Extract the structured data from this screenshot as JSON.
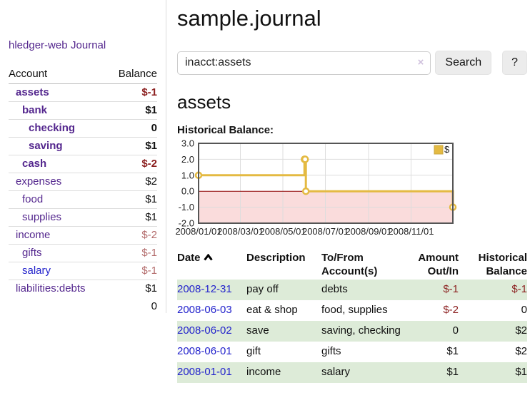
{
  "app": {
    "title": "hledger-web",
    "nav_journal": "Journal"
  },
  "colors": {
    "purple": "#54278e",
    "blue_link": "#2323cc",
    "negative": "#8b1f1f",
    "negative_muted": "#b36b6b",
    "row_green": "#ddebd8",
    "chart_line": "#e4ba42",
    "chart_line_border": "#c9a53d",
    "chart_negative_fill": "#fadcdc",
    "chart_zero_line": "#8b0000",
    "chart_border": "#555555",
    "grid": "#dddddd",
    "button_bg": "#ececec"
  },
  "sidebar": {
    "table": {
      "headers": [
        "Account",
        "Balance"
      ],
      "rows": [
        {
          "account": "assets",
          "indent": 1,
          "bold": true,
          "balance": "$-1",
          "tone": "neg"
        },
        {
          "account": "bank",
          "indent": 2,
          "bold": true,
          "balance": "$1",
          "tone": ""
        },
        {
          "account": "checking",
          "indent": 3,
          "bold": true,
          "balance": "0",
          "tone": ""
        },
        {
          "account": "saving",
          "indent": 3,
          "bold": true,
          "balance": "$1",
          "tone": ""
        },
        {
          "account": "cash",
          "indent": 2,
          "bold": true,
          "balance": "$-2",
          "tone": "neg"
        },
        {
          "account": "expenses",
          "indent": 1,
          "bold": false,
          "balance": "$2",
          "tone": ""
        },
        {
          "account": "food",
          "indent": 2,
          "bold": false,
          "balance": "$1",
          "tone": ""
        },
        {
          "account": "supplies",
          "indent": 2,
          "bold": false,
          "balance": "$1",
          "tone": ""
        },
        {
          "account": "income",
          "indent": 1,
          "bold": false,
          "balance": "$-2",
          "tone": "neg-muted"
        },
        {
          "account": "gifts",
          "indent": 2,
          "bold": false,
          "balance": "$-1",
          "tone": "neg-muted"
        },
        {
          "account": "salary",
          "indent": 2,
          "bold": false,
          "balance": "$-1",
          "tone": "neg-muted",
          "link": "blue"
        },
        {
          "account": "liabilities:debts",
          "indent": 1,
          "bold": false,
          "balance": "$1",
          "tone": ""
        }
      ],
      "total": "0"
    }
  },
  "header": {
    "title": "sample.journal"
  },
  "search": {
    "value": "inacct:assets",
    "clear_icon": "×",
    "button": "Search",
    "help_button": "?"
  },
  "account_page": {
    "heading": "assets"
  },
  "chart_data": {
    "type": "line",
    "step": true,
    "title": "Historical Balance:",
    "x_range": [
      "2008-01-01",
      "2008-12-31"
    ],
    "ylim": [
      -2,
      3
    ],
    "yticks": [
      3,
      2,
      1,
      0,
      -1,
      -2
    ],
    "xticks": [
      {
        "label": "2008/01/01",
        "date": "2008-01-01"
      },
      {
        "label": "2008/03/01",
        "date": "2008-03-01"
      },
      {
        "label": "2008/05/01",
        "date": "2008-05-01"
      },
      {
        "label": "2008/07/01",
        "date": "2008-07-01"
      },
      {
        "label": "2008/09/01",
        "date": "2008-09-01"
      },
      {
        "label": "2008/11/01",
        "date": "2008-11-01"
      }
    ],
    "series": [
      {
        "name": "$",
        "points": [
          {
            "date": "2008-01-01",
            "value": 1
          },
          {
            "date": "2008-06-01",
            "value": 2
          },
          {
            "date": "2008-06-02",
            "value": 2
          },
          {
            "date": "2008-06-03",
            "value": 0
          },
          {
            "date": "2008-12-31",
            "value": -1
          }
        ]
      }
    ],
    "legend_position": "top-right",
    "grid": true,
    "negative_region_shaded": true
  },
  "transactions": {
    "headers": [
      "Date",
      "Description",
      "To/From Account(s)",
      "Amount Out/In",
      "Historical Balance"
    ],
    "rows": [
      {
        "date": "2008-12-31",
        "description": "pay off",
        "accounts": "debts",
        "amount": "$-1",
        "amount_neg": true,
        "balance": "$-1",
        "balance_neg": true
      },
      {
        "date": "2008-06-03",
        "description": "eat & shop",
        "accounts": "food, supplies",
        "amount": "$-2",
        "amount_neg": true,
        "balance": "0",
        "balance_neg": false
      },
      {
        "date": "2008-06-02",
        "description": "save",
        "accounts": "saving, checking",
        "amount": "0",
        "amount_neg": false,
        "balance": "$2",
        "balance_neg": false
      },
      {
        "date": "2008-06-01",
        "description": "gift",
        "accounts": "gifts",
        "amount": "$1",
        "amount_neg": false,
        "balance": "$2",
        "balance_neg": false
      },
      {
        "date": "2008-01-01",
        "description": "income",
        "accounts": "salary",
        "amount": "$1",
        "amount_neg": false,
        "balance": "$1",
        "balance_neg": false
      }
    ]
  }
}
